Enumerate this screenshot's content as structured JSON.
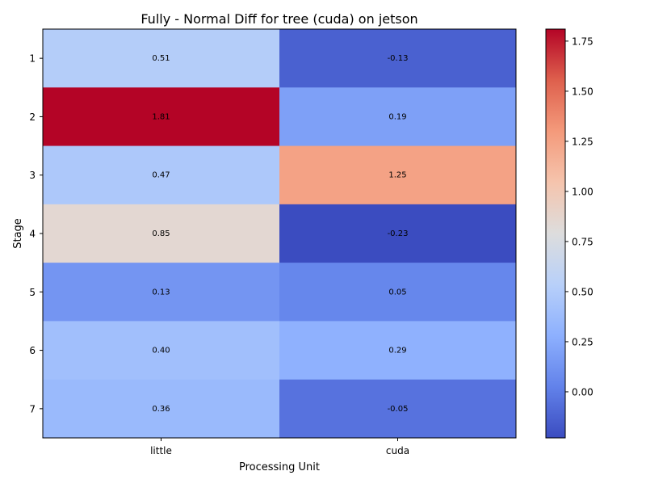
{
  "chart_data": {
    "type": "heatmap",
    "title": "Fully - Normal Diff for tree (cuda) on jetson",
    "xlabel": "Processing Unit",
    "ylabel": "Stage",
    "x_categories": [
      "little",
      "cuda"
    ],
    "y_categories": [
      "1",
      "2",
      "3",
      "4",
      "5",
      "6",
      "7"
    ],
    "values": [
      [
        0.51,
        -0.13
      ],
      [
        1.81,
        0.19
      ],
      [
        0.47,
        1.25
      ],
      [
        0.85,
        -0.23
      ],
      [
        0.13,
        0.05
      ],
      [
        0.4,
        0.29
      ],
      [
        0.36,
        -0.05
      ]
    ],
    "value_labels": [
      [
        "0.51",
        "-0.13"
      ],
      [
        "1.81",
        "0.19"
      ],
      [
        "0.47",
        "1.25"
      ],
      [
        "0.85",
        "-0.23"
      ],
      [
        "0.13",
        "0.05"
      ],
      [
        "0.40",
        "0.29"
      ],
      [
        "0.36",
        "-0.05"
      ]
    ],
    "colormap": "coolwarm",
    "colorbar": {
      "range": [
        -0.23,
        1.81
      ],
      "ticks": [
        0.0,
        0.25,
        0.5,
        0.75,
        1.0,
        1.25,
        1.5,
        1.75
      ],
      "tick_labels": [
        "0.00",
        "0.25",
        "0.50",
        "0.75",
        "1.00",
        "1.25",
        "1.50",
        "1.75"
      ]
    }
  }
}
